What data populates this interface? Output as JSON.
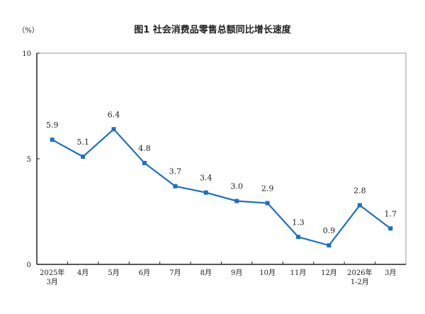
{
  "chart_data": {
    "type": "line",
    "title": "图1  社会消费品零售总额同比增长速度",
    "ylabel": "（%）",
    "categories": [
      [
        "2025年",
        "3月"
      ],
      [
        "4月"
      ],
      [
        "5月"
      ],
      [
        "6月"
      ],
      [
        "7月"
      ],
      [
        "8月"
      ],
      [
        "9月"
      ],
      [
        "10月"
      ],
      [
        "11月"
      ],
      [
        "12月"
      ],
      [
        "2026年",
        "1-2月"
      ],
      [
        "3月"
      ]
    ],
    "values": [
      5.9,
      5.1,
      6.4,
      4.8,
      3.7,
      3.4,
      3.0,
      2.9,
      1.3,
      0.9,
      2.8,
      1.7
    ],
    "data_labels": [
      "5.9",
      "5.1",
      "6.4",
      "4.8",
      "3.7",
      "3.4",
      "3.0",
      "2.9",
      "1.3",
      "0.9",
      "2.8",
      "1.7"
    ],
    "ylim": [
      0,
      10
    ],
    "yticks": [
      "0",
      "5",
      "10"
    ],
    "grid": false,
    "line_color": "#1d6fc4"
  }
}
